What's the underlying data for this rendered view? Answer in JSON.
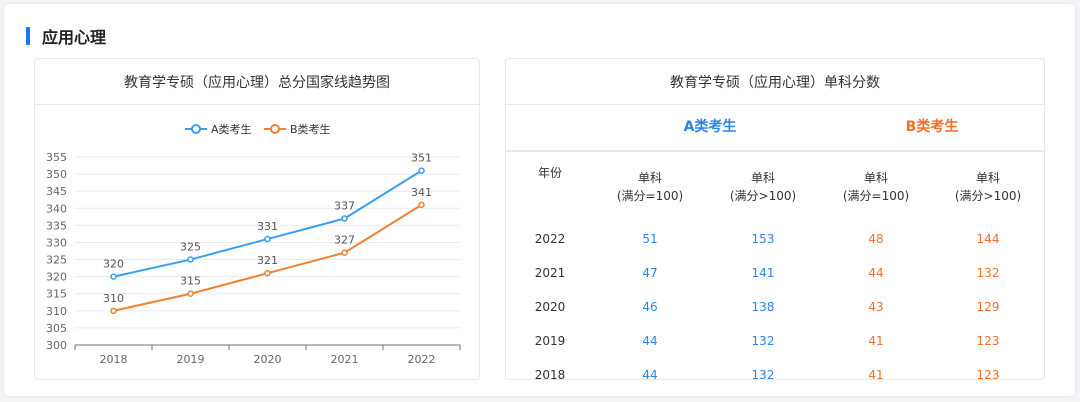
{
  "section_title": "应用心理",
  "colors": {
    "accent": "#1677ff",
    "series_a": "#3a9ef0",
    "series_b": "#f0822f",
    "table_a": "#2b85e4",
    "table_b": "#f06f2b"
  },
  "chart_data": {
    "type": "line",
    "title": "教育学专硕（应用心理）总分国家线趋势图",
    "x": [
      "2018",
      "2019",
      "2020",
      "2021",
      "2022"
    ],
    "ylim": [
      300,
      355
    ],
    "yticks": [
      300,
      305,
      310,
      315,
      320,
      325,
      330,
      335,
      340,
      345,
      350,
      355
    ],
    "legend_position": "top",
    "grid": true,
    "series": [
      {
        "name": "A类考生",
        "values": [
          320,
          325,
          331,
          337,
          351
        ]
      },
      {
        "name": "B类考生",
        "values": [
          310,
          315,
          321,
          327,
          341
        ]
      }
    ]
  },
  "table": {
    "title": "教育学专硕（应用心理）单科分数",
    "group_a": "A类考生",
    "group_b": "B类考生",
    "year_header": "年份",
    "col_headers": [
      {
        "line1": "单科",
        "line2": "(满分=100)"
      },
      {
        "line1": "单科",
        "line2": "(满分>100)"
      },
      {
        "line1": "单科",
        "line2": "(满分=100)"
      },
      {
        "line1": "单科",
        "line2": "(满分>100)"
      }
    ],
    "rows": [
      {
        "year": "2022",
        "a1": "51",
        "a2": "153",
        "b1": "48",
        "b2": "144"
      },
      {
        "year": "2021",
        "a1": "47",
        "a2": "141",
        "b1": "44",
        "b2": "132"
      },
      {
        "year": "2020",
        "a1": "46",
        "a2": "138",
        "b1": "43",
        "b2": "129"
      },
      {
        "year": "2019",
        "a1": "44",
        "a2": "132",
        "b1": "41",
        "b2": "123"
      },
      {
        "year": "2018",
        "a1": "44",
        "a2": "132",
        "b1": "41",
        "b2": "123"
      }
    ]
  }
}
